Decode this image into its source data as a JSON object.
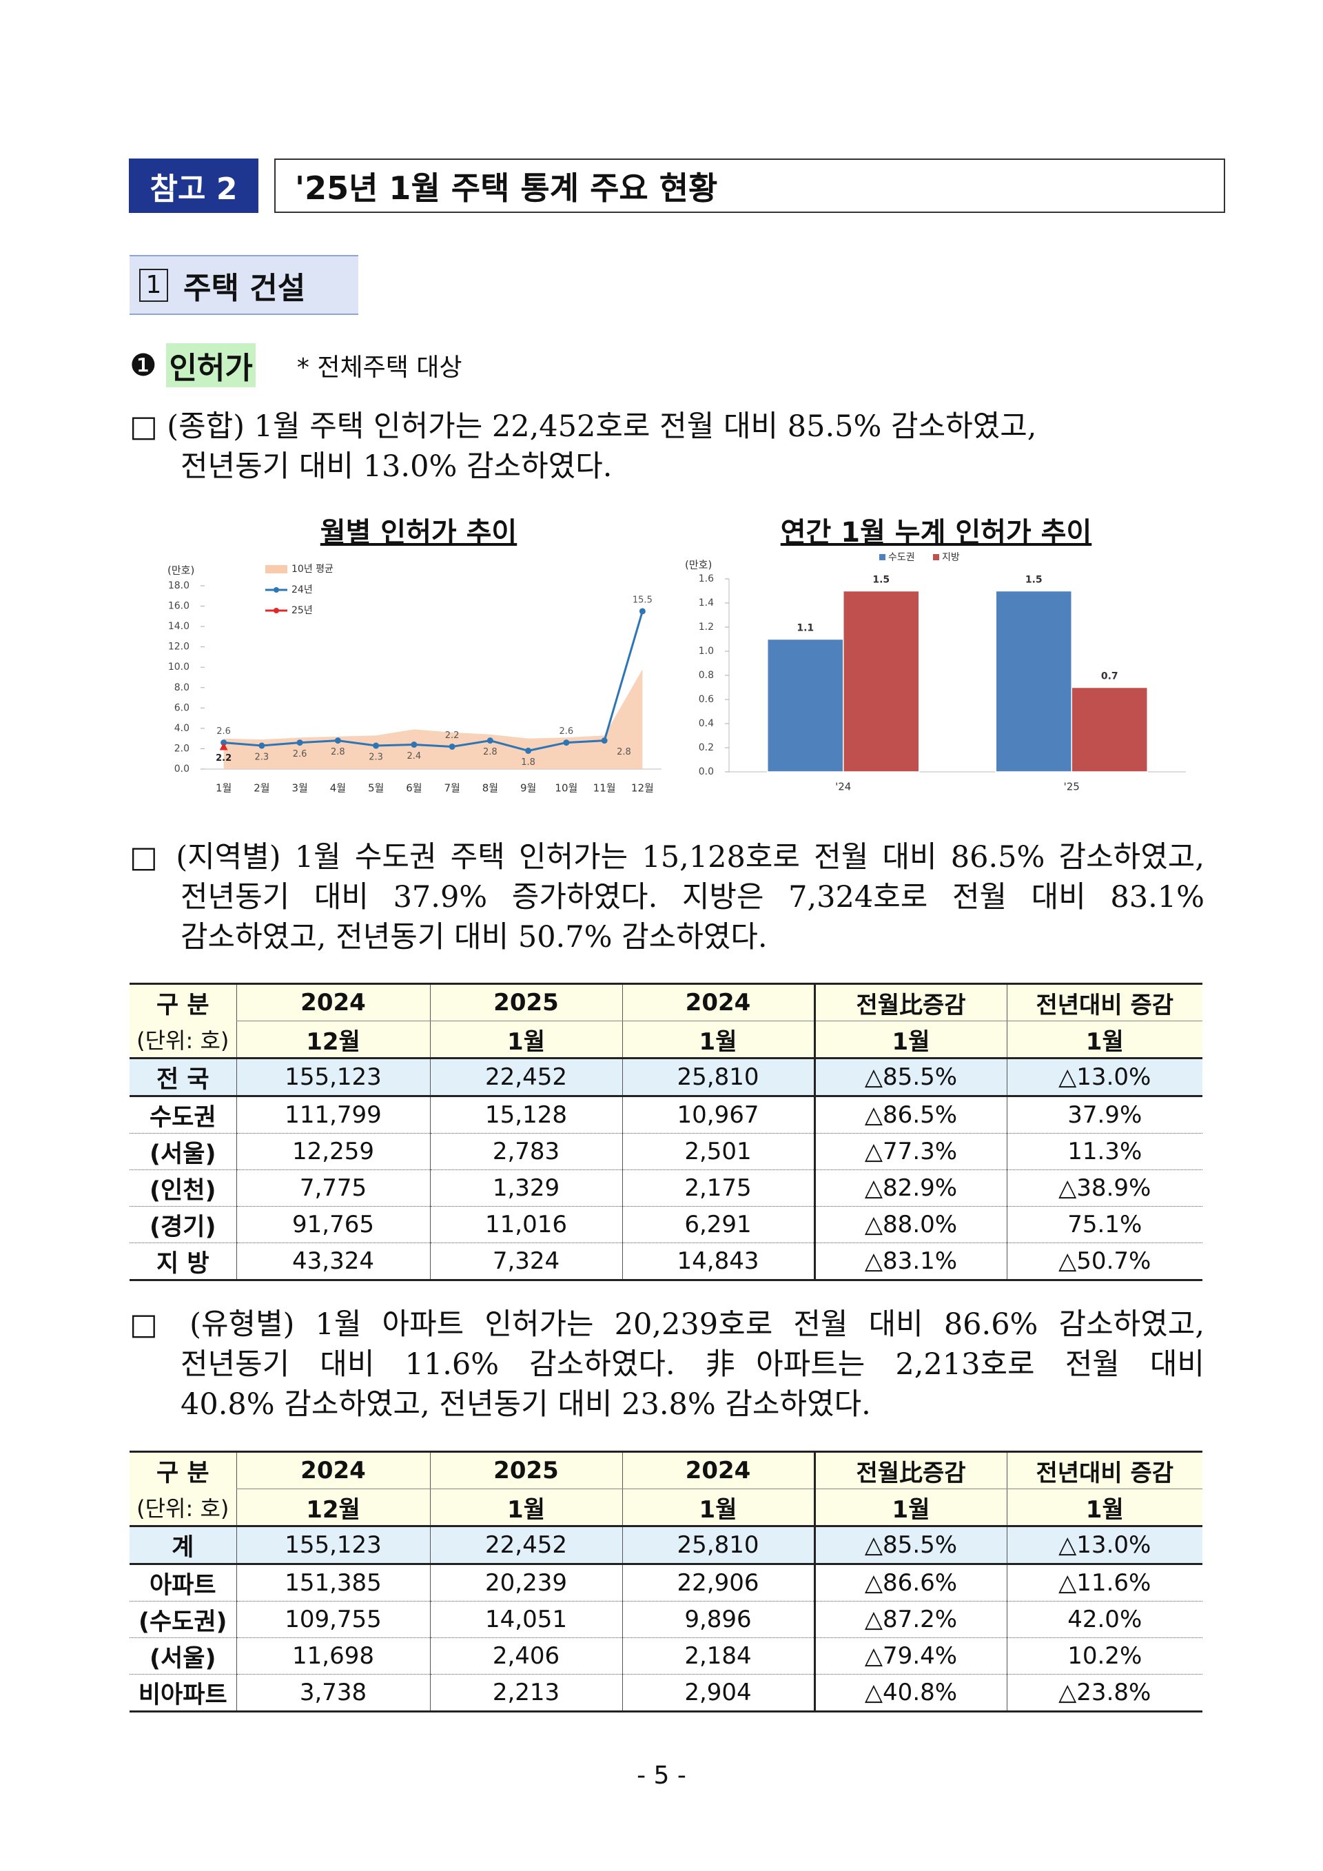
{
  "header": {
    "label": "참고 2",
    "title": "'25년 1월 주택 통계 주요 현황"
  },
  "section": {
    "number": "1",
    "title": "주택 건설"
  },
  "subsection": {
    "marker": "❶",
    "title": "인허가",
    "note": "* 전체주택 대상"
  },
  "paragraphs": [
    {
      "lines": [
        "□ (종합) 1월 주택 인허가는 22,452호로 전월 대비 85.5% 감소하였고,",
        "전년동기 대비 13.0% 감소하였다."
      ]
    },
    {
      "lines": [
        "□ (지역별) 1월 수도권 주택 인허가는 15,128호로 전월 대비 86.5% 감소하였고,",
        "전년동기 대비 37.9% 증가하였다. 지방은 7,324호로 전월 대비 83.1%",
        "감소하였고, 전년동기 대비 50.7% 감소하였다."
      ]
    },
    {
      "lines": [
        "□ (유형별) 1월 아파트 인허가는 20,239호로 전월 대비 86.6% 감소하였고,",
        "전년동기 대비 11.6% 감소하였다. 非아파트는 2,213호로 전월 대비",
        "40.8% 감소하였고, 전년동기 대비 23.8% 감소하였다."
      ]
    }
  ],
  "chart_data": [
    {
      "type": "line",
      "title": "월별 인허가 추이",
      "y_label": "(만호)",
      "categories": [
        "1월",
        "2월",
        "3월",
        "4월",
        "5월",
        "6월",
        "7월",
        "8월",
        "9월",
        "10월",
        "11월",
        "12월"
      ],
      "ylim": [
        0,
        18
      ],
      "yticks": [
        {
          "value": 0,
          "label": "0.0"
        },
        {
          "value": 2,
          "label": "2.0"
        },
        {
          "value": 4,
          "label": "4.0"
        },
        {
          "value": 6,
          "label": "6.0"
        },
        {
          "value": 8,
          "label": "8.0"
        },
        {
          "value": 10,
          "label": "10.0"
        },
        {
          "value": 12,
          "label": "12.0"
        },
        {
          "value": 14,
          "label": "14.0"
        },
        {
          "value": 16,
          "label": "16.0"
        },
        {
          "value": 18,
          "label": "18.0"
        }
      ],
      "series": [
        {
          "name": "10년 평균",
          "type": "area",
          "color": "#f8cbad",
          "values": [
            3.0,
            2.9,
            3.1,
            3.2,
            3.3,
            3.9,
            3.6,
            3.4,
            3.0,
            3.1,
            3.3,
            9.8
          ]
        },
        {
          "name": "24년",
          "type": "line",
          "color": "#2e75b6",
          "values": [
            2.6,
            2.3,
            2.6,
            2.8,
            2.3,
            2.4,
            2.2,
            2.8,
            1.8,
            2.6,
            2.8,
            15.5
          ]
        },
        {
          "name": "25년",
          "type": "line",
          "color": "#e02828",
          "values": [
            2.2,
            null,
            null,
            null,
            null,
            null,
            null,
            null,
            null,
            null,
            null,
            null
          ]
        }
      ]
    },
    {
      "type": "bar",
      "title": "연간 1월 누계 인허가 추이",
      "y_label": "(만호)",
      "categories": [
        "'24",
        "'25"
      ],
      "ylim": [
        0,
        1.6
      ],
      "yticks": [
        {
          "value": 0,
          "label": "0.0"
        },
        {
          "value": 0.2,
          "label": "0.2"
        },
        {
          "value": 0.4,
          "label": "0.4"
        },
        {
          "value": 0.6,
          "label": "0.6"
        },
        {
          "value": 0.8,
          "label": "0.8"
        },
        {
          "value": 1.0,
          "label": "1.0"
        },
        {
          "value": 1.2,
          "label": "1.2"
        },
        {
          "value": 1.4,
          "label": "1.4"
        },
        {
          "value": 1.6,
          "label": "1.6"
        }
      ],
      "series": [
        {
          "name": "수도권",
          "color": "#4f81bd",
          "values": [
            1.1,
            1.5
          ]
        },
        {
          "name": "지방",
          "color": "#c0504d",
          "values": [
            1.5,
            0.7
          ]
        }
      ]
    }
  ],
  "tables": [
    {
      "header": [
        [
          "구 분",
          "2024",
          "2025",
          "2024",
          "전월比증감",
          "전년대비 증감"
        ],
        [
          "(단위: 호)",
          "12월",
          "1월",
          "1월",
          "1월",
          "1월"
        ]
      ],
      "rows": [
        [
          "전 국",
          "155,123",
          "22,452",
          "25,810",
          "△85.5%",
          "△13.0%"
        ],
        [
          "수도권",
          "111,799",
          "15,128",
          "10,967",
          "△86.5%",
          "37.9%"
        ],
        [
          "(서울)",
          "12,259",
          "2,783",
          "2,501",
          "△77.3%",
          "11.3%"
        ],
        [
          "(인천)",
          "7,775",
          "1,329",
          "2,175",
          "△82.9%",
          "△38.9%"
        ],
        [
          "(경기)",
          "91,765",
          "11,016",
          "6,291",
          "△88.0%",
          "75.1%"
        ],
        [
          "지 방",
          "43,324",
          "7,324",
          "14,843",
          "△83.1%",
          "△50.7%"
        ]
      ]
    },
    {
      "header": [
        [
          "구 분",
          "2024",
          "2025",
          "2024",
          "전월比증감",
          "전년대비 증감"
        ],
        [
          "(단위: 호)",
          "12월",
          "1월",
          "1월",
          "1월",
          "1월"
        ]
      ],
      "rows": [
        [
          "계",
          "155,123",
          "22,452",
          "25,810",
          "△85.5%",
          "△13.0%"
        ],
        [
          "아파트",
          "151,385",
          "20,239",
          "22,906",
          "△86.6%",
          "△11.6%"
        ],
        [
          "(수도권)",
          "109,755",
          "14,051",
          "9,896",
          "△87.2%",
          "42.0%"
        ],
        [
          "(서울)",
          "11,698",
          "2,406",
          "2,184",
          "△79.4%",
          "10.2%"
        ],
        [
          "비아파트",
          "3,738",
          "2,213",
          "2,904",
          "△40.8%",
          "△23.8%"
        ]
      ]
    }
  ],
  "page_number": "- 5 -"
}
